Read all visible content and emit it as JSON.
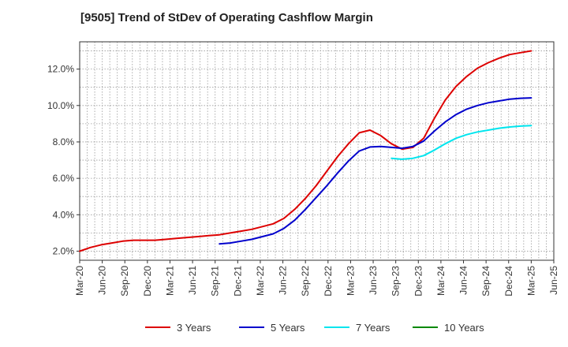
{
  "chart_data": {
    "type": "line",
    "title": "[9505]  Trend of StDev of Operating Cashflow Margin",
    "xlabel": "",
    "ylabel": "",
    "ylim": [
      1.5,
      13.5
    ],
    "grid": true,
    "legend_position": "bottom",
    "y_ticks": [
      2.0,
      4.0,
      6.0,
      8.0,
      10.0,
      12.0
    ],
    "y_tick_labels": [
      "2.0%",
      "4.0%",
      "6.0%",
      "8.0%",
      "10.0%",
      "12.0%"
    ],
    "x_tick_labels": [
      "Mar-20",
      "Jun-20",
      "Sep-20",
      "Dec-20",
      "Mar-21",
      "Jun-21",
      "Sep-21",
      "Dec-21",
      "Mar-22",
      "Jun-22",
      "Sep-22",
      "Dec-22",
      "Mar-23",
      "Jun-23",
      "Sep-23",
      "Dec-23",
      "Mar-24",
      "Jun-24",
      "Sep-24",
      "Dec-24",
      "Mar-25",
      "Jun-25"
    ],
    "series": [
      {
        "name": "3 Years",
        "color": "#dd0000",
        "values": [
          2.0,
          2.2,
          2.35,
          2.45,
          2.55,
          2.6,
          2.6,
          2.6,
          2.65,
          2.7,
          2.75,
          2.8,
          2.85,
          2.9,
          3.0,
          3.1,
          3.2,
          3.35,
          3.5,
          3.8,
          4.3,
          4.9,
          5.6,
          6.4,
          7.2,
          7.9,
          8.5,
          8.65,
          8.35,
          7.9,
          7.6,
          7.7,
          8.2,
          9.3,
          10.3,
          11.05,
          11.6,
          12.05,
          12.35,
          12.6,
          12.8,
          12.9,
          13.0
        ]
      },
      {
        "name": "5 Years",
        "color": "#0000cc",
        "values": [
          null,
          null,
          null,
          null,
          null,
          null,
          null,
          null,
          null,
          null,
          null,
          null,
          null,
          2.4,
          2.45,
          2.55,
          2.65,
          2.8,
          2.95,
          3.25,
          3.7,
          4.3,
          4.95,
          5.6,
          6.3,
          6.95,
          7.5,
          7.72,
          7.75,
          7.7,
          7.65,
          7.75,
          8.05,
          8.6,
          9.1,
          9.5,
          9.8,
          10.0,
          10.15,
          10.25,
          10.35,
          10.4,
          10.42
        ]
      },
      {
        "name": "7 Years",
        "color": "#00e5ee",
        "values": [
          null,
          null,
          null,
          null,
          null,
          null,
          null,
          null,
          null,
          null,
          null,
          null,
          null,
          null,
          null,
          null,
          null,
          null,
          null,
          null,
          null,
          null,
          null,
          null,
          null,
          null,
          null,
          null,
          null,
          7.1,
          7.05,
          7.1,
          7.25,
          7.55,
          7.9,
          8.2,
          8.4,
          8.55,
          8.65,
          8.75,
          8.82,
          8.87,
          8.9
        ]
      },
      {
        "name": "10 Years",
        "color": "#008800",
        "values": []
      }
    ]
  }
}
